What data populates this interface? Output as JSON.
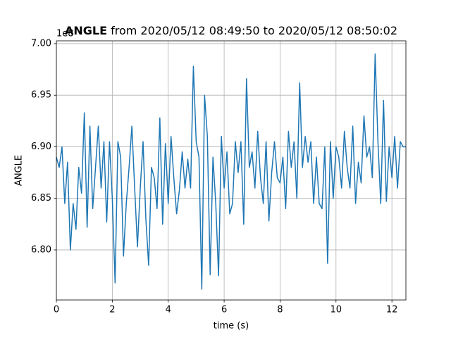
{
  "chart_data": {
    "type": "line",
    "title": [
      "ANGLE",
      "from 2020/05/12 08:49:50 to 2020/05/12 08:50:02"
    ],
    "x_label": "time (s)",
    "y_label": "ANGLE",
    "y_offset_text": "1e8",
    "xlim": [
      0,
      12.5
    ],
    "xticks": [
      0,
      2,
      4,
      6,
      8,
      10,
      12
    ],
    "ylim": [
      6.7515,
      7.0027
    ],
    "yticks": [
      {
        "value": 6.8,
        "label": "6.80"
      },
      6.85,
      {
        "value": 6.9,
        "label": "6.90"
      },
      6.95,
      {
        "value": 7.0,
        "label": "7.00"
      }
    ],
    "grid": true,
    "series": [
      {
        "name": "ANGLE",
        "color": "#1f77b4",
        "x": [
          0,
          0.1,
          0.2,
          0.3,
          0.4,
          0.5,
          0.6,
          0.7,
          0.8,
          0.9,
          1.0,
          1.1,
          1.2,
          1.3,
          1.4,
          1.5,
          1.6,
          1.7,
          1.8,
          1.9,
          2.0,
          2.1,
          2.2,
          2.3,
          2.4,
          2.5,
          2.6,
          2.7,
          2.8,
          2.9,
          3.0,
          3.1,
          3.2,
          3.3,
          3.4,
          3.5,
          3.6,
          3.7,
          3.8,
          3.9,
          4.0,
          4.1,
          4.2,
          4.3,
          4.4,
          4.5,
          4.6,
          4.7,
          4.8,
          4.9,
          5.0,
          5.1,
          5.2,
          5.3,
          5.4,
          5.5,
          5.6,
          5.7,
          5.8,
          5.9,
          6.0,
          6.1,
          6.2,
          6.3,
          6.4,
          6.5,
          6.6,
          6.7,
          6.8,
          6.9,
          7.0,
          7.1,
          7.2,
          7.3,
          7.4,
          7.5,
          7.6,
          7.7,
          7.8,
          7.9,
          8.0,
          8.1,
          8.2,
          8.3,
          8.4,
          8.5,
          8.6,
          8.7,
          8.8,
          8.9,
          9.0,
          9.1,
          9.2,
          9.3,
          9.4,
          9.5,
          9.6,
          9.7,
          9.8,
          9.9,
          10.0,
          10.1,
          10.2,
          10.3,
          10.4,
          10.5,
          10.6,
          10.7,
          10.8,
          10.9,
          11.0,
          11.1,
          11.2,
          11.3,
          11.4,
          11.5,
          11.6,
          11.7,
          11.8,
          11.9,
          12.0,
          12.1,
          12.2,
          12.3,
          12.4,
          12.5
        ],
        "values": [
          6.89,
          6.88,
          6.9,
          6.845,
          6.885,
          6.8,
          6.845,
          6.82,
          6.88,
          6.855,
          6.933,
          6.822,
          6.92,
          6.84,
          6.88,
          6.92,
          6.86,
          6.905,
          6.827,
          6.905,
          6.85,
          6.768,
          6.905,
          6.89,
          6.794,
          6.845,
          6.88,
          6.92,
          6.86,
          6.803,
          6.86,
          6.905,
          6.83,
          6.785,
          6.88,
          6.87,
          6.84,
          6.928,
          6.825,
          6.903,
          6.845,
          6.91,
          6.87,
          6.835,
          6.858,
          6.895,
          6.86,
          6.888,
          6.86,
          6.978,
          6.905,
          6.89,
          6.762,
          6.95,
          6.91,
          6.776,
          6.89,
          6.845,
          6.775,
          6.91,
          6.86,
          6.895,
          6.835,
          6.845,
          6.905,
          6.875,
          6.905,
          6.825,
          6.966,
          6.88,
          6.895,
          6.86,
          6.915,
          6.87,
          6.845,
          6.905,
          6.828,
          6.875,
          6.905,
          6.87,
          6.865,
          6.89,
          6.84,
          6.915,
          6.88,
          6.905,
          6.85,
          6.962,
          6.88,
          6.91,
          6.885,
          6.905,
          6.845,
          6.89,
          6.845,
          6.84,
          6.9,
          6.787,
          6.905,
          6.85,
          6.9,
          6.89,
          6.86,
          6.915,
          6.88,
          6.86,
          6.92,
          6.845,
          6.885,
          6.865,
          6.93,
          6.89,
          6.9,
          6.87,
          6.99,
          6.905,
          6.845,
          6.945,
          6.847,
          6.9,
          6.87,
          6.91,
          6.86,
          6.905,
          6.9,
          6.9
        ]
      }
    ]
  }
}
